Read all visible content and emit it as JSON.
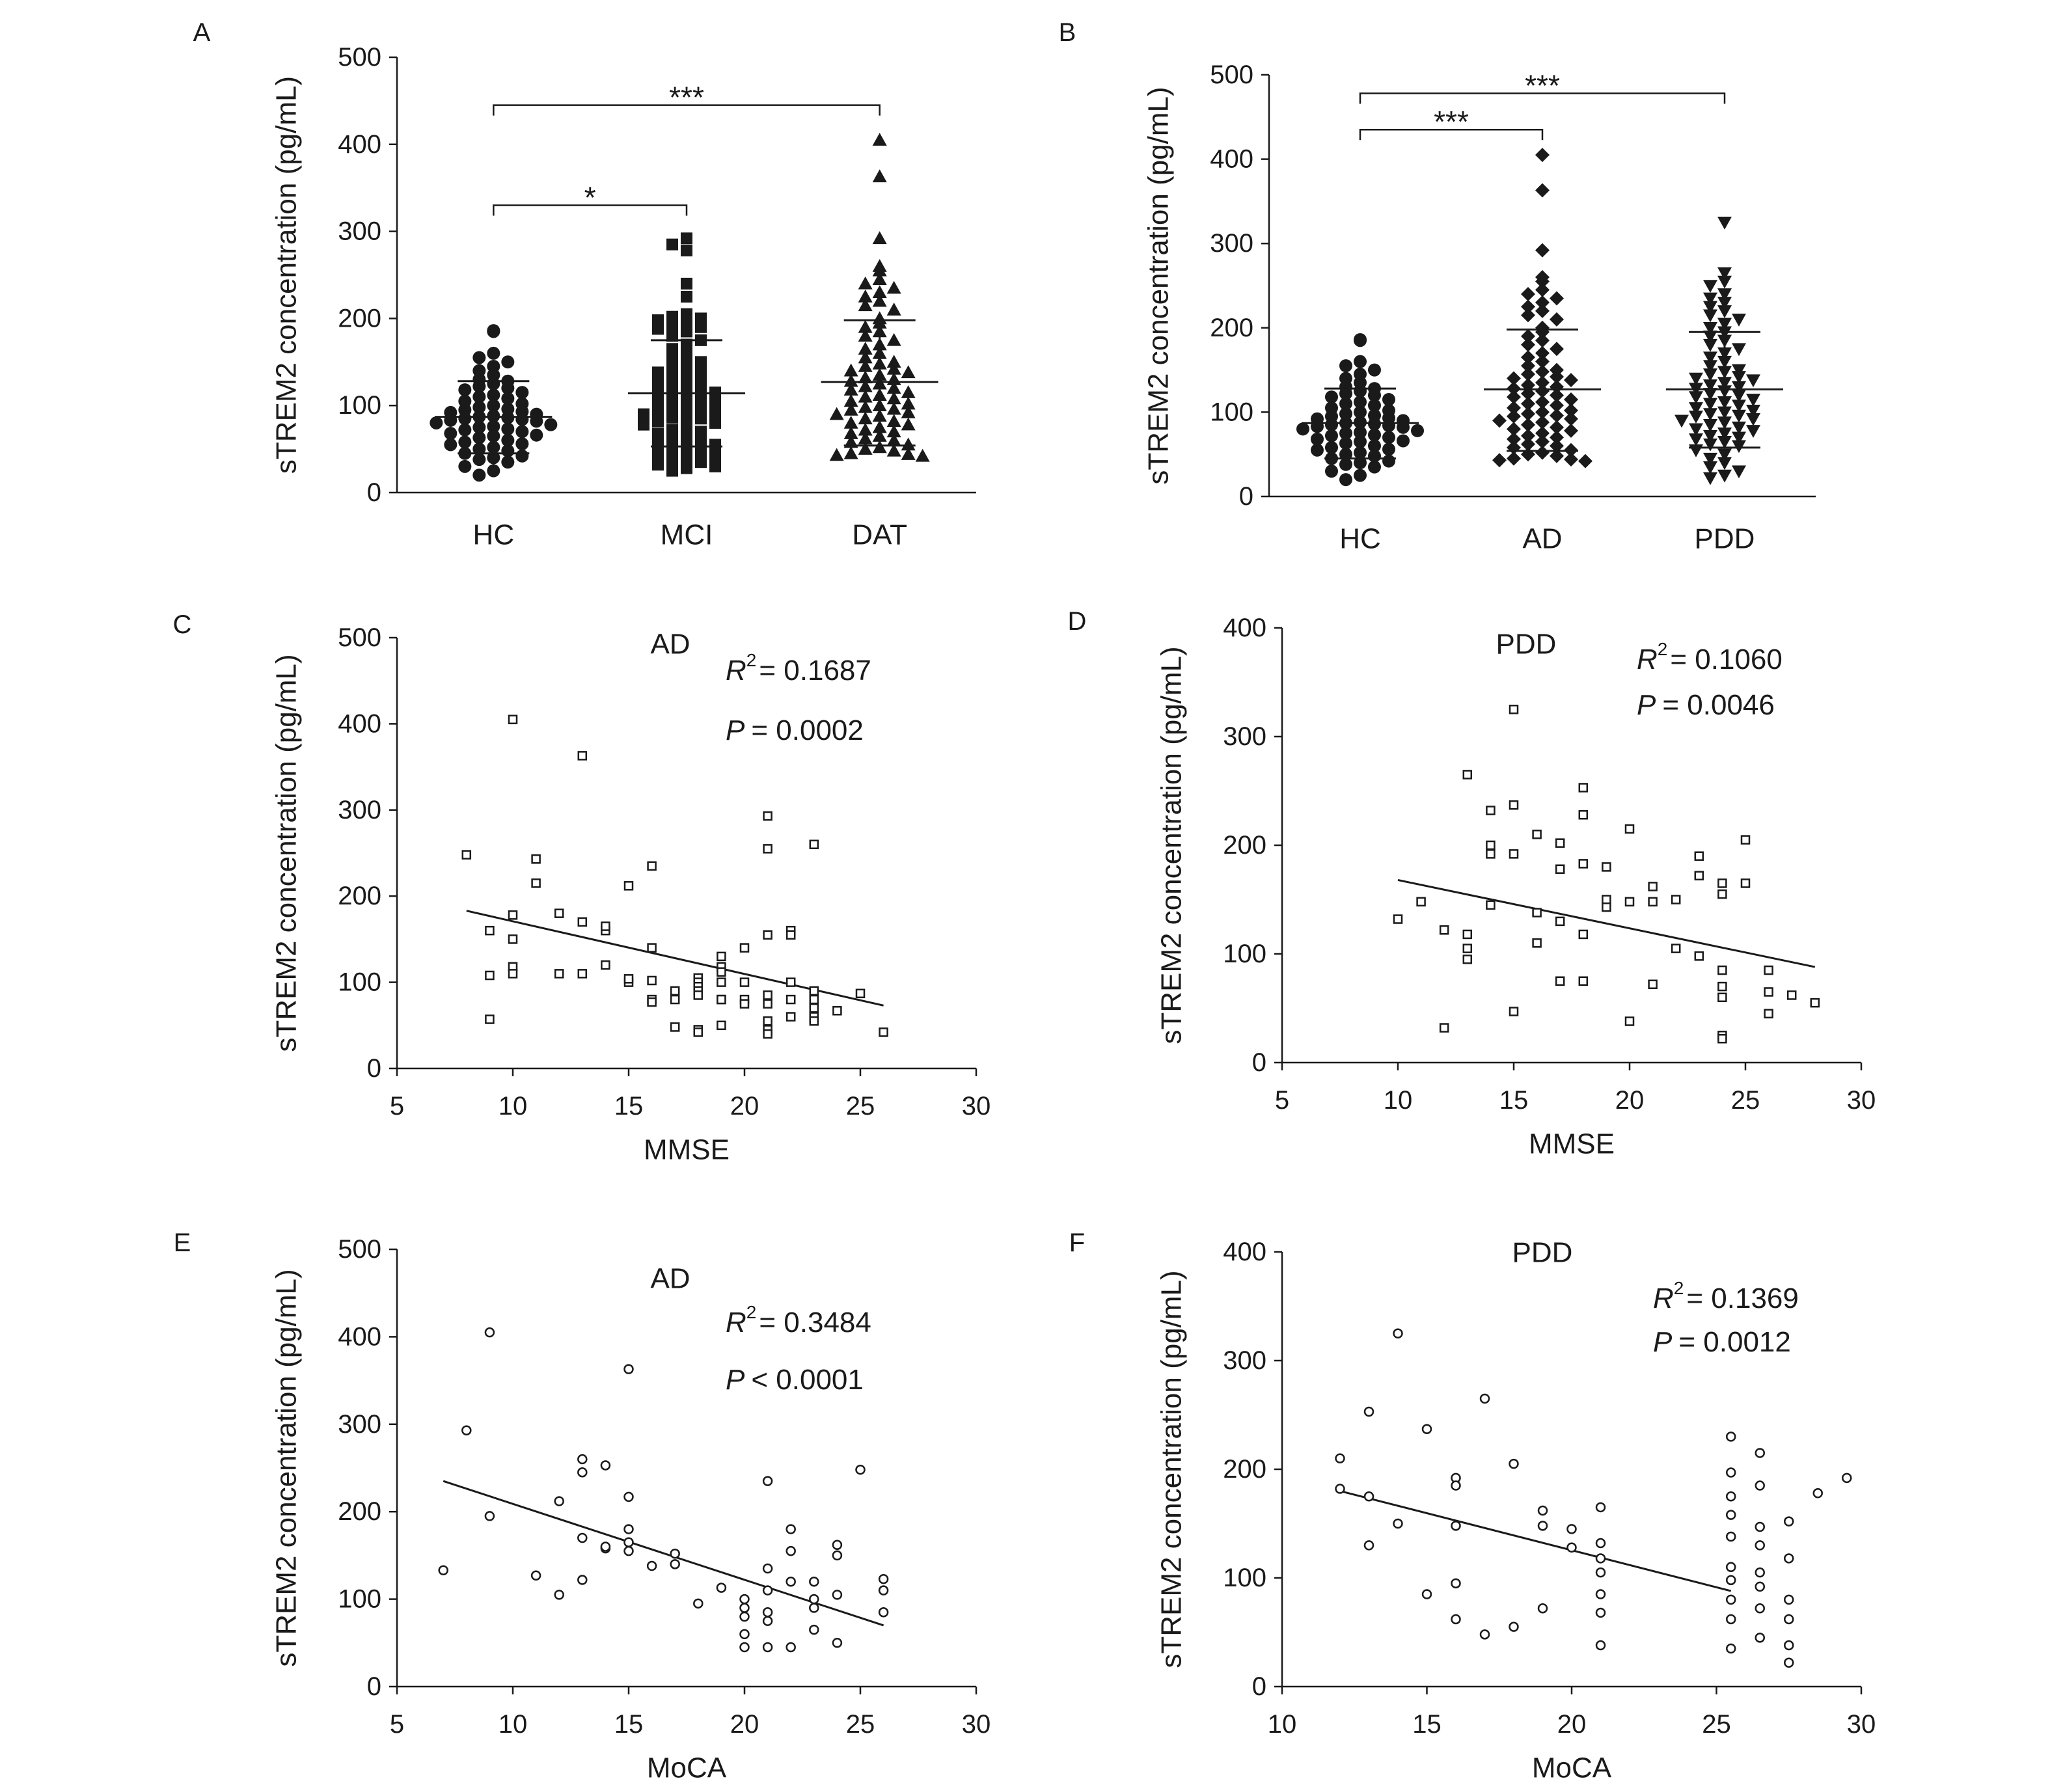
{
  "figure": {
    "panels": [
      "A",
      "B",
      "C",
      "D",
      "E",
      "F"
    ]
  },
  "colors": {
    "ink": "#1a1a1a",
    "background": "#ffffff"
  },
  "chart_data": [
    {
      "id": "A",
      "type": "scatter",
      "style": "dot-plot",
      "title": "",
      "ylabel": "sTREM2 concentration (pg/mL)",
      "xlabel": "",
      "ylim": [
        0,
        500
      ],
      "yticks": [
        "0",
        "100",
        "200",
        "300",
        "400",
        "500"
      ],
      "categories": [
        "HC",
        "MCI",
        "DAT"
      ],
      "markers": [
        "circle",
        "square",
        "triangle-up"
      ],
      "means": [
        87,
        114,
        127
      ],
      "sd_upper": [
        128,
        175,
        198
      ],
      "sd_lower": [
        45,
        53,
        54
      ],
      "significance": [
        {
          "from": "HC",
          "to": "MCI",
          "label": "*",
          "y": 330
        },
        {
          "from": "HC",
          "to": "DAT",
          "label": "***",
          "y": 445
        }
      ],
      "series": [
        {
          "values": [
            185,
            186,
            160,
            155,
            150,
            145,
            140,
            135,
            130,
            128,
            125,
            122,
            120,
            118,
            115,
            112,
            110,
            108,
            105,
            102,
            100,
            98,
            96,
            95,
            93,
            92,
            90,
            88,
            87,
            86,
            85,
            84,
            83,
            82,
            80,
            78,
            76,
            75,
            73,
            72,
            70,
            68,
            66,
            65,
            63,
            60,
            58,
            56,
            55,
            52,
            50,
            48,
            45,
            42,
            40,
            38,
            35,
            30,
            25,
            20
          ]
        },
        {
          "values": [
            292,
            285,
            278,
            240,
            225,
            205,
            202,
            200,
            198,
            195,
            192,
            190,
            188,
            185,
            180,
            175,
            170,
            165,
            160,
            155,
            150,
            148,
            145,
            140,
            138,
            135,
            132,
            130,
            128,
            125,
            122,
            120,
            118,
            115,
            112,
            110,
            108,
            105,
            102,
            100,
            98,
            96,
            95,
            92,
            90,
            88,
            86,
            85,
            82,
            80,
            78,
            75,
            72,
            70,
            68,
            65,
            62,
            60,
            58,
            55,
            52,
            50,
            48,
            45,
            42,
            40,
            38,
            35,
            32,
            30,
            28,
            25
          ]
        },
        {
          "values": [
            405,
            363,
            292,
            260,
            255,
            245,
            240,
            235,
            230,
            225,
            220,
            215,
            210,
            200,
            195,
            190,
            185,
            180,
            175,
            170,
            165,
            160,
            155,
            150,
            148,
            145,
            142,
            140,
            138,
            135,
            132,
            130,
            128,
            125,
            122,
            120,
            118,
            115,
            112,
            110,
            108,
            105,
            102,
            100,
            98,
            96,
            95,
            92,
            90,
            88,
            85,
            82,
            80,
            78,
            75,
            72,
            70,
            68,
            65,
            62,
            60,
            58,
            55,
            52,
            50,
            48,
            45,
            44,
            43,
            42
          ]
        }
      ]
    },
    {
      "id": "B",
      "type": "scatter",
      "style": "dot-plot",
      "title": "",
      "ylabel": "sTREM2 concentration (pg/mL)",
      "xlabel": "",
      "ylim": [
        0,
        500
      ],
      "yticks": [
        "0",
        "100",
        "200",
        "300",
        "400",
        "500"
      ],
      "categories": [
        "HC",
        "AD",
        "PDD"
      ],
      "markers": [
        "circle",
        "diamond",
        "triangle-down"
      ],
      "means": [
        87,
        127,
        127
      ],
      "sd_upper": [
        128,
        198,
        195
      ],
      "sd_lower": [
        45,
        54,
        58
      ],
      "significance": [
        {
          "from": "HC",
          "to": "AD",
          "label": "***",
          "y": 435
        },
        {
          "from": "HC",
          "to": "PDD",
          "label": "***",
          "y": 478
        }
      ],
      "series": [
        {
          "values": [
            185,
            186,
            160,
            155,
            150,
            145,
            140,
            135,
            130,
            128,
            125,
            122,
            120,
            118,
            115,
            112,
            110,
            108,
            105,
            102,
            100,
            98,
            96,
            95,
            93,
            92,
            90,
            88,
            87,
            86,
            85,
            84,
            83,
            82,
            80,
            78,
            76,
            75,
            73,
            72,
            70,
            68,
            66,
            65,
            63,
            60,
            58,
            56,
            55,
            52,
            50,
            48,
            45,
            42,
            40,
            38,
            35,
            30,
            25,
            20
          ]
        },
        {
          "values": [
            405,
            363,
            292,
            260,
            255,
            245,
            240,
            235,
            230,
            225,
            220,
            215,
            210,
            200,
            195,
            190,
            185,
            180,
            175,
            170,
            165,
            160,
            155,
            150,
            148,
            145,
            142,
            140,
            138,
            135,
            132,
            130,
            128,
            125,
            122,
            120,
            118,
            115,
            112,
            110,
            108,
            105,
            102,
            100,
            98,
            96,
            95,
            92,
            90,
            88,
            85,
            82,
            80,
            78,
            75,
            72,
            70,
            68,
            65,
            62,
            60,
            58,
            55,
            52,
            50,
            48,
            45,
            44,
            43,
            42
          ]
        },
        {
          "values": [
            325,
            265,
            255,
            250,
            240,
            235,
            230,
            225,
            220,
            215,
            210,
            205,
            200,
            195,
            190,
            185,
            180,
            175,
            170,
            165,
            160,
            155,
            150,
            148,
            145,
            142,
            140,
            138,
            135,
            132,
            130,
            128,
            125,
            122,
            120,
            118,
            115,
            112,
            110,
            108,
            105,
            102,
            100,
            98,
            96,
            95,
            92,
            90,
            88,
            85,
            82,
            80,
            78,
            75,
            72,
            70,
            68,
            65,
            62,
            60,
            55,
            50,
            45,
            40,
            35,
            30,
            25,
            22
          ]
        }
      ]
    },
    {
      "id": "C",
      "type": "scatter",
      "title": "AD",
      "marker": "square",
      "ylabel": "sTREM2 concentration (pg/mL)",
      "xlabel": "MMSE",
      "xlim": [
        5,
        30
      ],
      "ylim": [
        0,
        500
      ],
      "xticks": [
        "5",
        "10",
        "15",
        "20",
        "25",
        "30"
      ],
      "yticks": [
        "0",
        "100",
        "200",
        "300",
        "400",
        "500"
      ],
      "r2_value": "= 0.1687",
      "p_value": "= 0.0002",
      "regression": {
        "x": [
          8,
          26
        ],
        "y": [
          183,
          73
        ]
      },
      "x": [
        10,
        13,
        8,
        11,
        11,
        12,
        10,
        9,
        16,
        15,
        13,
        14,
        10,
        10,
        10,
        9,
        9,
        14,
        13,
        12,
        15,
        15,
        16,
        17,
        16,
        16,
        17,
        16,
        18,
        18,
        18,
        18,
        18,
        18,
        19,
        19,
        19,
        19,
        19,
        19,
        20,
        20,
        20,
        21,
        21,
        21,
        21,
        21,
        21,
        22,
        22,
        22,
        22,
        22,
        23,
        23,
        23,
        23,
        23,
        24,
        25,
        26,
        21,
        21,
        23,
        17,
        18,
        19,
        20,
        14
      ],
      "y": [
        405,
        363,
        248,
        243,
        215,
        180,
        178,
        160,
        235,
        212,
        170,
        160,
        150,
        118,
        110,
        108,
        57,
        120,
        110,
        110,
        100,
        104,
        102,
        90,
        80,
        77,
        80,
        140,
        105,
        100,
        95,
        90,
        85,
        45,
        130,
        118,
        112,
        100,
        80,
        50,
        140,
        100,
        80,
        293,
        255,
        155,
        85,
        55,
        45,
        160,
        155,
        100,
        80,
        60,
        90,
        80,
        70,
        60,
        55,
        67,
        87,
        42,
        75,
        40,
        260,
        48,
        42,
        80,
        75,
        165
      ]
    },
    {
      "id": "D",
      "type": "scatter",
      "title": "PDD",
      "marker": "square",
      "ylabel": "sTREM2 concentration (pg/mL)",
      "xlabel": "MMSE",
      "xlim": [
        5,
        30
      ],
      "ylim": [
        0,
        400
      ],
      "xticks": [
        "5",
        "10",
        "15",
        "20",
        "25",
        "30"
      ],
      "yticks": [
        "0",
        "100",
        "200",
        "300",
        "400"
      ],
      "r2_value": "= 0.1060",
      "p_value": "= 0.0046",
      "regression": {
        "x": [
          10,
          28
        ],
        "y": [
          168,
          88
        ]
      },
      "x": [
        15,
        13,
        18,
        15,
        14,
        14,
        14,
        16,
        17,
        18,
        18,
        19,
        20,
        22,
        21,
        17,
        19,
        13,
        10,
        11,
        12,
        13,
        13,
        14,
        15,
        16,
        17,
        16,
        18,
        19,
        20,
        21,
        22,
        23,
        23,
        24,
        24,
        24,
        24,
        24,
        25,
        25,
        26,
        26,
        26,
        27,
        28,
        15,
        12,
        17,
        18,
        21,
        20,
        23,
        24,
        24
      ],
      "y": [
        325,
        265,
        253,
        237,
        232,
        200,
        192,
        210,
        202,
        228,
        183,
        180,
        215,
        150,
        162,
        178,
        150,
        118,
        132,
        148,
        122,
        105,
        95,
        145,
        192,
        138,
        130,
        110,
        118,
        143,
        148,
        148,
        105,
        190,
        172,
        165,
        155,
        85,
        70,
        60,
        205,
        165,
        85,
        65,
        45,
        62,
        55,
        47,
        32,
        75,
        75,
        72,
        38,
        98,
        25,
        22
      ]
    },
    {
      "id": "E",
      "type": "scatter",
      "title": "AD",
      "marker": "circle",
      "ylabel": "sTREM2 concentration (pg/mL)",
      "xlabel": "MoCA",
      "xlim": [
        5,
        30
      ],
      "ylim": [
        0,
        500
      ],
      "xticks": [
        "5",
        "10",
        "15",
        "20",
        "25",
        "30"
      ],
      "yticks": [
        "0",
        "100",
        "200",
        "300",
        "400",
        "500"
      ],
      "r2_value": "= 0.3484",
      "p_value": "< 0.0001",
      "regression": {
        "x": [
          7,
          26
        ],
        "y": [
          235,
          70
        ]
      },
      "x": [
        9,
        15,
        8,
        13,
        13,
        14,
        12,
        9,
        7,
        11,
        12,
        13,
        14,
        15,
        15,
        15,
        16,
        17,
        17,
        18,
        19,
        20,
        20,
        20,
        20,
        20,
        21,
        21,
        21,
        21,
        21,
        22,
        22,
        22,
        22,
        23,
        23,
        23,
        23,
        24,
        24,
        24,
        24,
        25,
        26,
        26,
        26,
        21,
        13,
        15,
        14
      ],
      "y": [
        405,
        363,
        293,
        260,
        245,
        253,
        212,
        195,
        133,
        127,
        105,
        170,
        158,
        217,
        180,
        155,
        138,
        152,
        140,
        95,
        113,
        100,
        90,
        80,
        60,
        45,
        235,
        135,
        110,
        85,
        45,
        180,
        155,
        120,
        45,
        120,
        100,
        90,
        65,
        162,
        150,
        105,
        50,
        248,
        123,
        110,
        85,
        75,
        122,
        165,
        160
      ]
    },
    {
      "id": "F",
      "type": "scatter",
      "title": "PDD",
      "marker": "circle",
      "ylabel": "sTREM2 concentration (pg/mL)",
      "xlabel": "MoCA",
      "xlim": [
        10,
        30
      ],
      "ylim": [
        0,
        400
      ],
      "xticks": [
        "10",
        "15",
        "20",
        "25",
        "30"
      ],
      "yticks": [
        "0",
        "100",
        "200",
        "300",
        "400"
      ],
      "r2_value": "= 0.1369",
      "p_value": "= 0.0012",
      "regression": {
        "x": [
          12,
          25.5
        ],
        "y": [
          180,
          88
        ]
      },
      "x": [
        14,
        17,
        13,
        15,
        12,
        12,
        13,
        13,
        14,
        16,
        16,
        16,
        15,
        16,
        16,
        17,
        18,
        18,
        19,
        19,
        19,
        20,
        20,
        21,
        21,
        21,
        21,
        21,
        21,
        21,
        25.5,
        25.5,
        25.5,
        25.5,
        25.5,
        25.5,
        25.5,
        25.5,
        25.5,
        25.5,
        26.5,
        26.5,
        26.5,
        26.5,
        26.5,
        26.5,
        26.5,
        26.5,
        27.5,
        27.5,
        27.5,
        27.5,
        27.5,
        27.5,
        28.5,
        29.5
      ],
      "y": [
        325,
        265,
        253,
        237,
        210,
        182,
        175,
        130,
        150,
        192,
        185,
        148,
        85,
        95,
        62,
        48,
        205,
        55,
        162,
        148,
        72,
        145,
        128,
        165,
        132,
        118,
        105,
        85,
        38,
        68,
        230,
        197,
        175,
        158,
        138,
        110,
        98,
        80,
        62,
        35,
        215,
        185,
        147,
        130,
        105,
        92,
        72,
        45,
        152,
        118,
        80,
        62,
        38,
        22,
        178,
        192
      ]
    }
  ]
}
